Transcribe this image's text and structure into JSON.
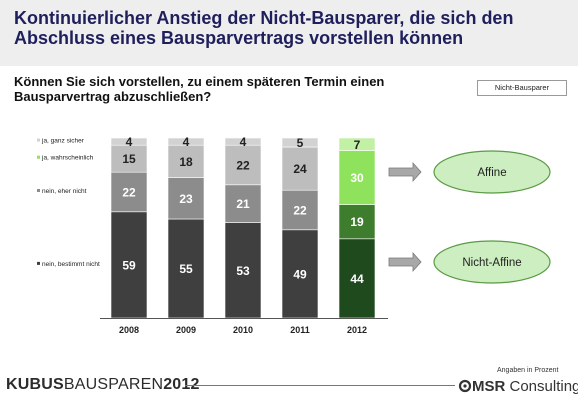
{
  "headline": "Kontinuierlicher Anstieg der Nicht-Bausparer, die sich den Abschluss eines Bausparvertrags vorstellen können",
  "legend_box": "Nicht-Bausparer",
  "footer": {
    "brand_bold": "KUBUS",
    "brand_thin": "BAUSPAREN",
    "brand_year": "2012",
    "note": "Angaben in Prozent",
    "logo_prefix": "MSR",
    "logo_suffix": " Consulting"
  },
  "colors": {
    "gray_series": [
      "#3f3f3f",
      "#8c8c8c",
      "#bdbdbd",
      "#d2d2d2"
    ],
    "green_series": [
      "#1f4a1e",
      "#3f7d2e",
      "#8fe25c",
      "#c2f0a4"
    ],
    "ellipse_fill": "#cdeec0",
    "arrow_fill": "#a8a8a8"
  },
  "chart_data": {
    "type": "bar",
    "stacked": true,
    "title": "Können Sie sich vorstellen, zu einem späteren Termin einen Bausparvertrag abzuschließen?",
    "categories": [
      "2008",
      "2009",
      "2010",
      "2011",
      "2012"
    ],
    "series": [
      {
        "name": "nein, bestimmt nicht",
        "values": [
          59,
          55,
          53,
          49,
          44
        ]
      },
      {
        "name": "nein, eher nicht",
        "values": [
          22,
          23,
          21,
          22,
          19
        ]
      },
      {
        "name": "ja, wahrscheinlich",
        "values": [
          15,
          18,
          22,
          24,
          30
        ]
      },
      {
        "name": "ja, ganz sicher",
        "values": [
          4,
          4,
          4,
          5,
          7
        ]
      }
    ],
    "highlight_category": "2012",
    "annotations": [
      "Affine",
      "Nicht-Affine"
    ],
    "ylim": [
      0,
      100
    ]
  }
}
